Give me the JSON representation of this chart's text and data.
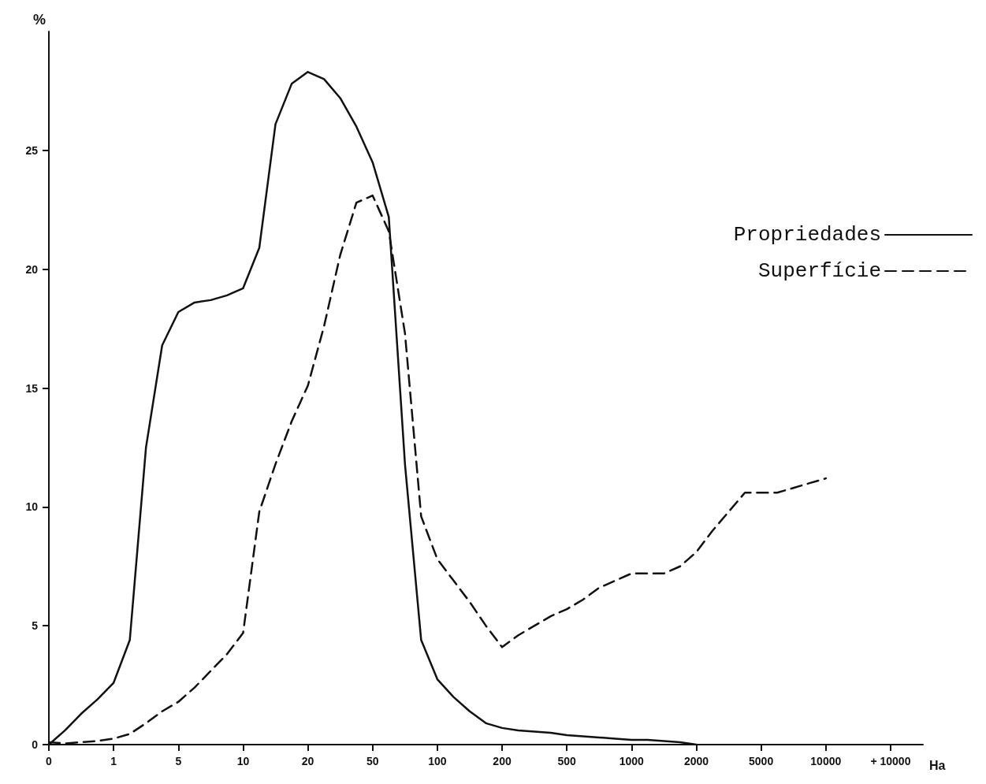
{
  "chart_data": {
    "type": "line",
    "xlabel": "Ha",
    "ylabel": "%",
    "categories": [
      "0",
      null,
      null,
      null,
      "1",
      null,
      null,
      null,
      "5",
      null,
      null,
      null,
      "10",
      null,
      null,
      null,
      "20",
      null,
      null,
      null,
      "50",
      null,
      null,
      null,
      "100",
      null,
      null,
      null,
      "200",
      null,
      null,
      null,
      "500",
      null,
      null,
      null,
      "1000",
      null,
      null,
      null,
      "2000",
      null,
      null,
      null,
      "5000",
      null,
      null,
      null,
      "10000",
      null,
      null,
      null,
      "+ 10000",
      null,
      null
    ],
    "series": [
      {
        "name": "Propriedades",
        "color": "#111111",
        "line_style": "solid",
        "values": [
          0,
          0.6,
          1.3,
          1.9,
          2.6,
          4.4,
          12.5,
          16.8,
          18.2,
          18.6,
          18.7,
          18.9,
          19.2,
          20.9,
          26.1,
          27.8,
          28.3,
          28.0,
          27.2,
          26.0,
          24.5,
          22.2,
          11.8,
          4.4,
          2.75,
          2.0,
          1.4,
          0.9,
          0.7,
          0.6,
          0.55,
          0.5,
          0.4,
          0.35,
          0.3,
          0.25,
          0.2,
          0.2,
          0.15,
          0.1,
          0,
          null,
          null,
          null,
          null,
          null,
          null,
          null,
          null,
          null,
          null,
          null,
          null,
          null,
          null
        ]
      },
      {
        "name": "Superfície",
        "color": "#111111",
        "line_style": "dashed",
        "values": [
          0.1,
          0.05,
          0.1,
          0.15,
          0.25,
          0.45,
          0.9,
          1.4,
          1.8,
          2.4,
          3.1,
          3.8,
          4.7,
          9.8,
          11.8,
          13.6,
          15.1,
          17.6,
          20.6,
          22.8,
          23.1,
          21.6,
          17.3,
          9.6,
          7.8,
          6.9,
          6.0,
          5.0,
          4.1,
          4.6,
          5.0,
          5.4,
          5.7,
          6.1,
          6.6,
          6.9,
          7.2,
          7.2,
          7.2,
          7.5,
          8.1,
          9.0,
          9.8,
          10.6,
          10.6,
          10.6,
          10.8,
          11.0,
          11.2,
          null,
          null,
          null,
          null,
          null,
          null
        ]
      }
    ],
    "ylim": [
      0,
      30
    ],
    "yticks": [
      0,
      5,
      10,
      15,
      20,
      25
    ],
    "grid": false,
    "legend": "right",
    "marker": "none"
  }
}
